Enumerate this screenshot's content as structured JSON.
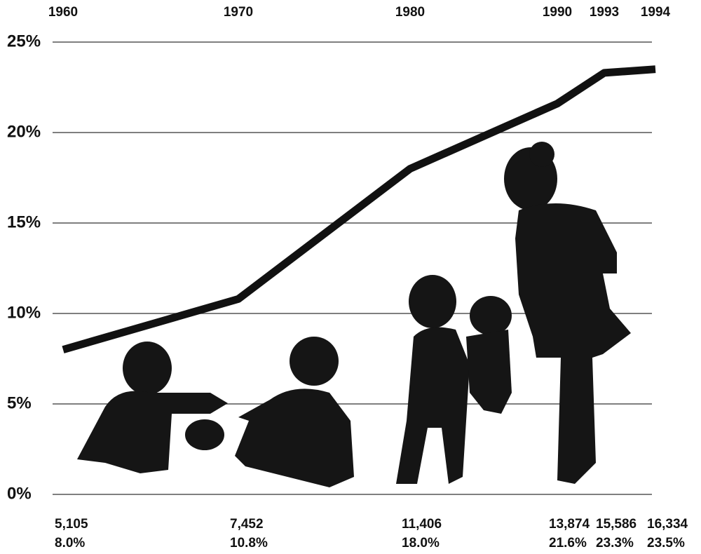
{
  "chart_data": {
    "type": "line",
    "categories": [
      "1960",
      "1970",
      "1980",
      "1990",
      "1993",
      "1994"
    ],
    "series": [
      {
        "color": "#111111",
        "values": [
          8.0,
          10.8,
          18.0,
          21.6,
          23.3,
          23.5
        ],
        "value_labels": [
          "8.0%",
          "10.8%",
          "18.0%",
          "21.6%",
          "23.3%",
          "23.5%"
        ]
      }
    ],
    "counts": {
      "values": [
        5105,
        7452,
        11406,
        13874,
        15586,
        16334
      ],
      "value_labels": [
        "5,105",
        "7,452",
        "11,406",
        "13,874",
        "15,586",
        "16,334"
      ]
    },
    "ylim": [
      0,
      25
    ],
    "yticks": [
      {
        "value": 0,
        "label": "0%"
      },
      {
        "value": 5,
        "label": "5%"
      },
      {
        "value": 10,
        "label": "10%"
      },
      {
        "value": 15,
        "label": "15%"
      },
      {
        "value": 20,
        "label": "20%"
      },
      {
        "value": 25,
        "label": "25%"
      }
    ],
    "grid": true
  }
}
